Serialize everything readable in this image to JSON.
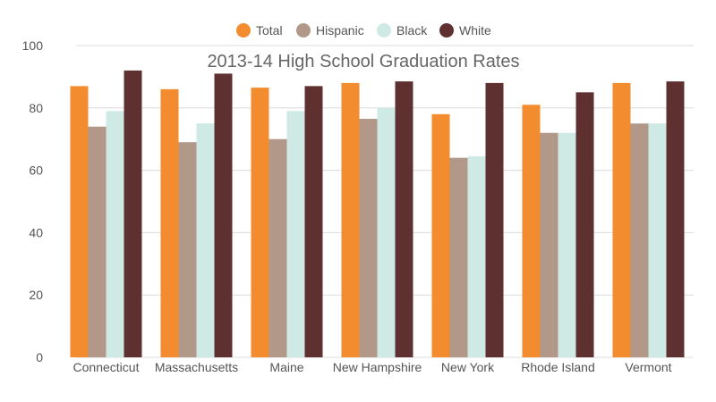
{
  "chart_data": {
    "type": "bar",
    "title": "2013-14 High School Graduation Rates",
    "xlabel": "",
    "ylabel": "",
    "ylim": [
      0,
      100
    ],
    "yticks": [
      0,
      20,
      40,
      60,
      80,
      100
    ],
    "grid": true,
    "legend_position": "top-center",
    "categories": [
      "Connecticut",
      "Massachusetts",
      "Maine",
      "New Hampshire",
      "New York",
      "Rhode Island",
      "Vermont"
    ],
    "series": [
      {
        "name": "Total",
        "color": "#f28c2e",
        "values": [
          87,
          86,
          86.5,
          88,
          78,
          81,
          88
        ]
      },
      {
        "name": "Hispanic",
        "color": "#b19889",
        "values": [
          74,
          69,
          70,
          76.5,
          64,
          72,
          75
        ]
      },
      {
        "name": "Black",
        "color": "#cfeae4",
        "values": [
          79,
          75,
          79,
          80,
          64.5,
          72,
          75
        ]
      },
      {
        "name": "White",
        "color": "#5e3030",
        "values": [
          92,
          91,
          87,
          88.5,
          88,
          85,
          88.5
        ]
      }
    ]
  }
}
